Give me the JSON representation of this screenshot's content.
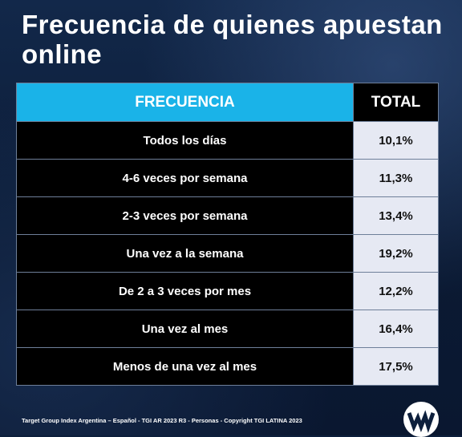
{
  "title": "Frecuencia de quienes apuestan online",
  "chart_data": {
    "type": "table",
    "columns": [
      "FRECUENCIA",
      "TOTAL"
    ],
    "rows": [
      {
        "label": "Todos los días",
        "value": "10,1%"
      },
      {
        "label": "4-6 veces por semana",
        "value": "11,3%"
      },
      {
        "label": "2-3 veces por semana",
        "value": "13,4%"
      },
      {
        "label": "Una vez a la semana",
        "value": "19,2%"
      },
      {
        "label": "De 2 a 3 veces por mes",
        "value": "12,2%"
      },
      {
        "label": "Una vez al mes",
        "value": "16,4%"
      },
      {
        "label": "Menos de una vez al mes",
        "value": "17,5%"
      }
    ]
  },
  "footer": "Target Group Index Argentina – Español  - TGI AR 2023 R3 - Personas - Copyright TGI LATINA 2023",
  "logo": {
    "icon": "wm-logo-icon",
    "color": "#0d1f3c"
  }
}
